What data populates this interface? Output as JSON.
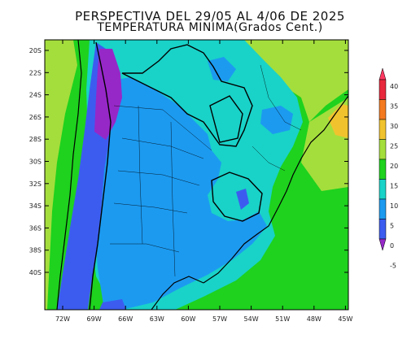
{
  "title": {
    "line1": "PERSPECTIVA DEL 29/05 AL 4/06 DE 2025",
    "line2": "TEMPERATURA MINIMA(Grados Cent.)"
  },
  "axes": {
    "lat_labels": [
      "20S",
      "22S",
      "24S",
      "26S",
      "28S",
      "30S",
      "32S",
      "34S",
      "36S",
      "38S",
      "40S"
    ],
    "lon_labels": [
      "72W",
      "69W",
      "66W",
      "63W",
      "60W",
      "57W",
      "54W",
      "51W",
      "48W",
      "45W"
    ]
  },
  "legend": {
    "labels": [
      "40",
      "35",
      "30",
      "25",
      "20",
      "15",
      "10",
      "5",
      "0",
      "-5"
    ],
    "colors": [
      "#ff3860",
      "#e8283c",
      "#f47a20",
      "#f0c32e",
      "#a4de3c",
      "#1ed21e",
      "#19d2c8",
      "#1c9af0",
      "#3c5cf0",
      "#9628c8"
    ]
  },
  "map_colors": {
    "ocean_border": "#0fc864",
    "green": "#1ed21e",
    "light_green": "#a4de3c",
    "yellow": "#f0c32e",
    "cyan": "#19d2c8",
    "blue": "#1c9af0",
    "dark_blue": "#3c5cf0",
    "purple": "#9628c8",
    "boundary": "#000000"
  }
}
